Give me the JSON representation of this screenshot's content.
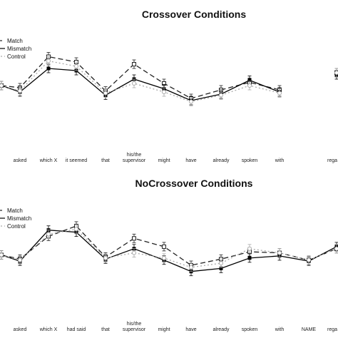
{
  "chart_data": [
    {
      "type": "line",
      "title": "Crossover Conditions",
      "categories": [
        "",
        "asked",
        "which X",
        "it seemed",
        "that",
        "his/the\nsupervisor",
        "might",
        "have",
        "already",
        "spoken",
        "with",
        "",
        "rega"
      ],
      "legend": [
        "Match",
        "Mismatch",
        "Control"
      ],
      "legend_position": "top-left",
      "grid": false,
      "ylim": [
        0,
        1
      ],
      "series": [
        {
          "name": "Match",
          "values": [
            0.5,
            0.48,
            0.77,
            0.72,
            0.45,
            0.7,
            0.52,
            0.38,
            0.46,
            0.53,
            0.46,
            null,
            0.62
          ]
        },
        {
          "name": "Mismatch",
          "values": [
            0.5,
            0.44,
            0.66,
            0.64,
            0.41,
            0.56,
            0.47,
            0.36,
            0.42,
            0.55,
            0.44,
            null,
            0.6
          ]
        },
        {
          "name": "Control",
          "values": [
            0.5,
            0.45,
            0.73,
            0.68,
            0.43,
            0.52,
            0.44,
            0.35,
            0.41,
            0.5,
            0.43,
            null,
            0.62
          ]
        }
      ]
    },
    {
      "type": "line",
      "title": "NoCrossover Conditions",
      "categories": [
        "",
        "asked",
        "which X",
        "had said",
        "that",
        "his/the\nsupervisor",
        "might",
        "have",
        "already",
        "spoken",
        "with",
        "NAME",
        "rega"
      ],
      "legend": [
        "Match",
        "Mismatch",
        "Control"
      ],
      "legend_position": "top-left",
      "grid": false,
      "ylim": [
        0,
        1
      ],
      "series": [
        {
          "name": "Match",
          "values": [
            0.5,
            0.46,
            0.68,
            0.78,
            0.48,
            0.66,
            0.58,
            0.4,
            0.46,
            0.53,
            0.52,
            0.45,
            0.56
          ]
        },
        {
          "name": "Mismatch",
          "values": [
            0.5,
            0.44,
            0.74,
            0.72,
            0.46,
            0.56,
            0.45,
            0.34,
            0.37,
            0.47,
            0.49,
            0.44,
            0.58
          ]
        },
        {
          "name": "Control",
          "values": [
            0.5,
            0.45,
            0.7,
            0.75,
            0.47,
            0.52,
            0.47,
            0.38,
            0.42,
            0.56,
            0.52,
            0.45,
            0.56
          ]
        }
      ]
    }
  ],
  "colors": {
    "match": "#222222",
    "mismatch": "#000000",
    "control": "#aaaaaa"
  }
}
